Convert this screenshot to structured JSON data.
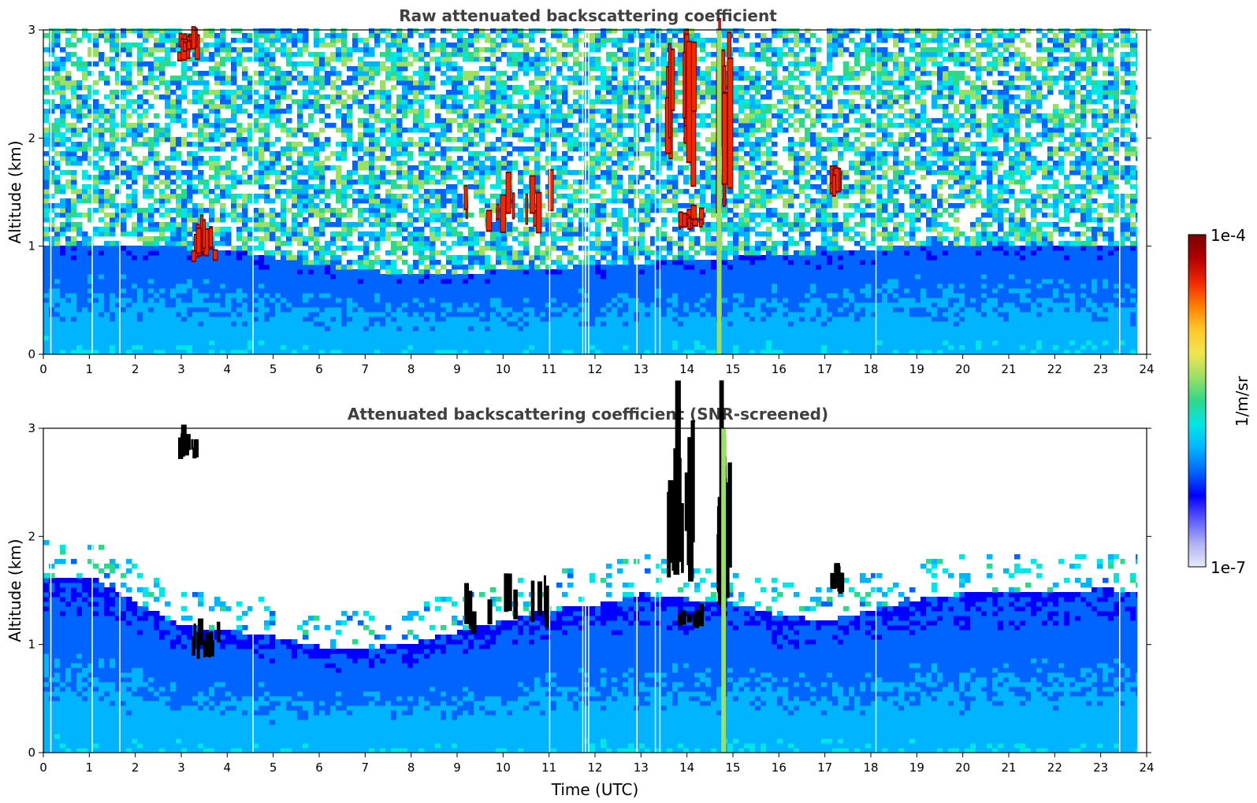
{
  "chart_data": [
    {
      "type": "heatmap",
      "title": "Raw attenuated backscattering coefficient",
      "xlabel": "",
      "ylabel": "Altitude (km)",
      "xlim": [
        0,
        24
      ],
      "ylim": [
        0,
        3
      ],
      "x_ticks": [
        "0",
        "1",
        "2",
        "3",
        "4",
        "5",
        "6",
        "7",
        "8",
        "9",
        "10",
        "11",
        "12",
        "13",
        "14",
        "15",
        "16",
        "17",
        "18",
        "19",
        "20",
        "21",
        "22",
        "23",
        "24"
      ],
      "y_ticks": [
        "0",
        "1",
        "2",
        "3"
      ],
      "color_scale": "log",
      "value_range": [
        "1e-7",
        "1e-4"
      ],
      "features": [
        {
          "time": [
            2.9,
            3.3
          ],
          "altitude": [
            2.7,
            3.0
          ],
          "level": "1e-4"
        },
        {
          "time": [
            3.2,
            3.8
          ],
          "altitude": [
            0.85,
            1.2
          ],
          "level": "1e-4"
        },
        {
          "time": [
            9.1,
            11.0
          ],
          "altitude": [
            1.1,
            1.6
          ],
          "level": "1e-4"
        },
        {
          "time": [
            13.8,
            14.3
          ],
          "altitude": [
            1.15,
            1.35
          ],
          "level": "1e-4"
        },
        {
          "time": [
            13.5,
            14.1
          ],
          "altitude": [
            1.5,
            3.0
          ],
          "level": "1e-4"
        },
        {
          "time": [
            14.6,
            14.9
          ],
          "altitude": [
            1.3,
            3.0
          ],
          "level": "1e-4"
        },
        {
          "time": [
            17.1,
            17.3
          ],
          "altitude": [
            1.45,
            1.75
          ],
          "level": "1e-4"
        },
        {
          "time": [
            14.65,
            14.75
          ],
          "altitude": [
            0,
            3.0
          ],
          "level": "5e-6"
        }
      ],
      "noise_floor_altitude_km": [
        [
          0,
          1.0
        ],
        [
          4,
          0.95
        ],
        [
          6,
          0.8
        ],
        [
          8,
          0.7
        ],
        [
          10,
          0.75
        ],
        [
          12,
          0.8
        ],
        [
          14,
          0.85
        ],
        [
          16,
          0.9
        ],
        [
          18,
          0.95
        ],
        [
          20,
          1.0
        ],
        [
          24,
          1.0
        ]
      ],
      "data_gaps_time": [
        0.15,
        1.05,
        1.65,
        4.55,
        11.0,
        11.72,
        11.78,
        11.85,
        12.9,
        13.3,
        13.4,
        18.1,
        23.4
      ]
    },
    {
      "type": "heatmap",
      "title": "Attenuated backscattering coefficient (SNR-screened)",
      "xlabel": "Time (UTC)",
      "ylabel": "Altitude (km)",
      "xlim": [
        0,
        24
      ],
      "ylim": [
        0,
        3
      ],
      "x_ticks": [
        "0",
        "1",
        "2",
        "3",
        "4",
        "5",
        "6",
        "7",
        "8",
        "9",
        "10",
        "11",
        "12",
        "13",
        "14",
        "15",
        "16",
        "17",
        "18",
        "19",
        "20",
        "21",
        "22",
        "23",
        "24"
      ],
      "y_ticks": [
        "0",
        "1",
        "2",
        "3"
      ],
      "color_scale": "log",
      "value_range": [
        "1e-7",
        "1e-4"
      ],
      "screened_top_altitude_km": [
        [
          0,
          1.6
        ],
        [
          1,
          1.6
        ],
        [
          2,
          1.35
        ],
        [
          3,
          1.15
        ],
        [
          4,
          1.1
        ],
        [
          5,
          1.05
        ],
        [
          6,
          0.95
        ],
        [
          7,
          0.95
        ],
        [
          8,
          1.0
        ],
        [
          9,
          1.1
        ],
        [
          10,
          1.2
        ],
        [
          11,
          1.3
        ],
        [
          12,
          1.35
        ],
        [
          13,
          1.45
        ],
        [
          14,
          1.4
        ],
        [
          15,
          1.35
        ],
        [
          16,
          1.25
        ],
        [
          17,
          1.2
        ],
        [
          18,
          1.3
        ],
        [
          19,
          1.4
        ],
        [
          20,
          1.45
        ],
        [
          21,
          1.45
        ],
        [
          22,
          1.45
        ],
        [
          23,
          1.5
        ],
        [
          23.8,
          1.45
        ]
      ]
    }
  ],
  "colorbar": {
    "label": "1/m/sr",
    "top_label": "1e-4",
    "bottom_label": "1e-7",
    "colors": [
      "#e8e8f8",
      "#aeb0f0",
      "#5a5aff",
      "#0000ff",
      "#0064ff",
      "#00b4ff",
      "#00e6e6",
      "#2ed88a",
      "#9be064",
      "#f0e650",
      "#ffc828",
      "#ff7d00",
      "#f02800",
      "#b40000",
      "#780000"
    ]
  }
}
